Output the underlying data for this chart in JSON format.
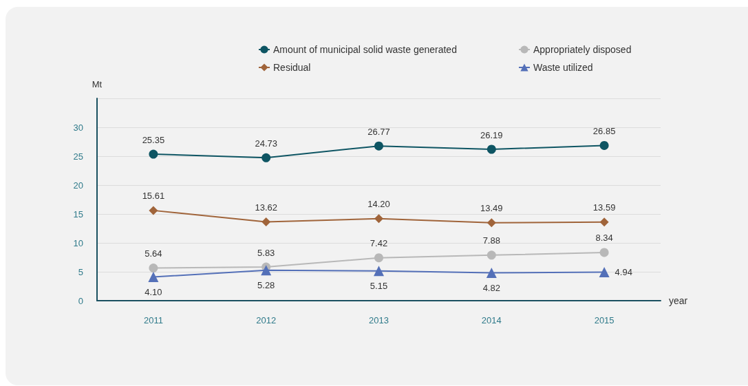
{
  "chart_data": {
    "type": "line",
    "xlabel": "year",
    "ylabel": "Mt",
    "categories": [
      "2011",
      "2012",
      "2013",
      "2014",
      "2015"
    ],
    "ylim": [
      0,
      35
    ],
    "yticks": [
      0,
      5,
      10,
      15,
      20,
      25,
      30,
      {
        "value": 35,
        "label": null
      }
    ],
    "grid": "y",
    "legend": "top",
    "line_style": "solid",
    "series": [
      {
        "name": "Amount of municipal solid waste generated",
        "color": "#0e5563",
        "marker": "circle",
        "values": [
          25.35,
          24.73,
          26.77,
          26.19,
          26.85
        ],
        "value_labels": [
          "25.35",
          "24.73",
          "26.77",
          "26.19",
          "26.85"
        ]
      },
      {
        "name": "Residual",
        "color": "#a0643a",
        "marker": "diamond",
        "values": [
          15.61,
          13.62,
          14.2,
          13.49,
          13.59
        ],
        "value_labels": [
          "15.61",
          "13.62",
          "14.20",
          "13.49",
          "13.59"
        ]
      },
      {
        "name": "Appropriately disposed",
        "color": "#b8b8b8",
        "marker": "circle",
        "values": [
          5.64,
          5.83,
          7.42,
          7.88,
          8.34
        ],
        "value_labels": [
          "5.64",
          "5.83",
          "7.42",
          "7.88",
          "8.34"
        ]
      },
      {
        "name": "Waste utilized",
        "color": "#5470b8",
        "marker": "triangle",
        "values": [
          4.1,
          5.28,
          5.15,
          4.82,
          4.94
        ],
        "value_labels": [
          "4.10",
          "5.28",
          "5.15",
          "4.82",
          "4.94"
        ]
      }
    ]
  }
}
